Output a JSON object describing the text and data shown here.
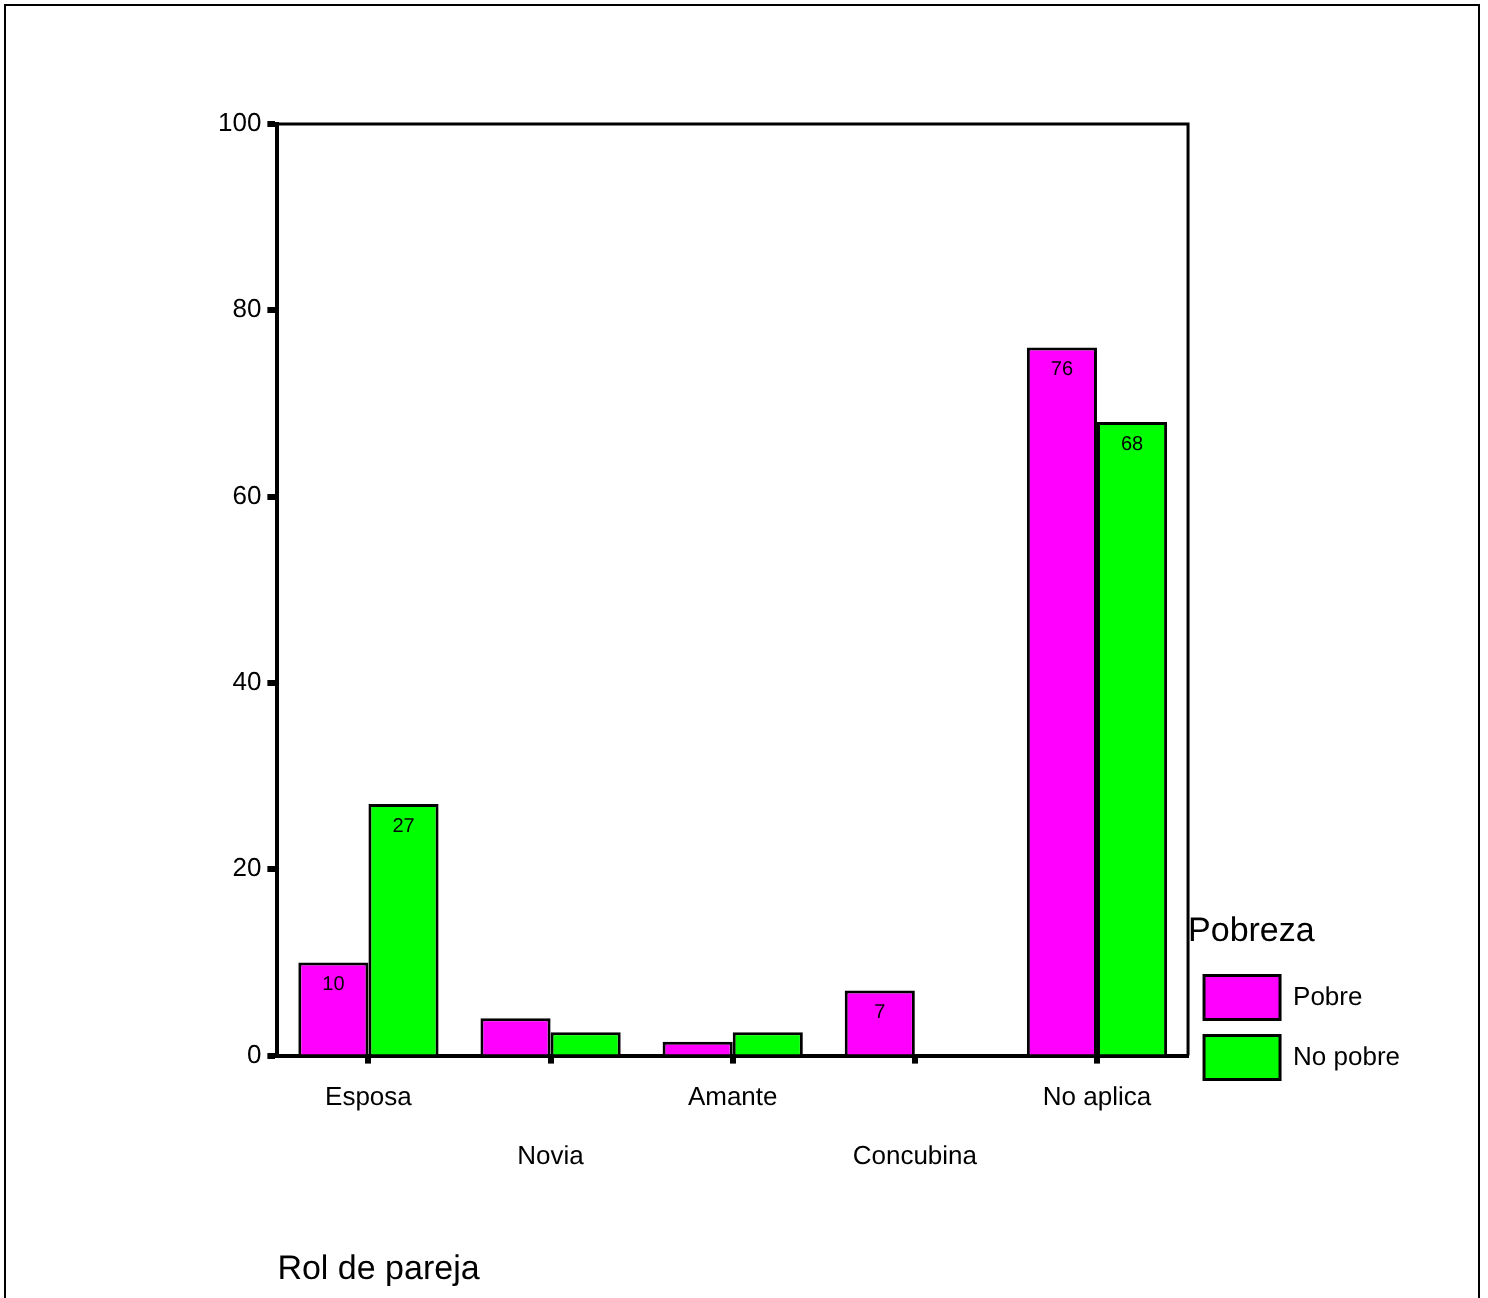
{
  "chart_data": {
    "type": "bar",
    "xlabel": "Rol de pareja",
    "legend_title": "Pobreza",
    "categories": [
      "Esposa",
      "Novia",
      "Amante",
      "Concubina",
      "No aplica"
    ],
    "series": [
      {
        "name": "Pobre",
        "color": "#ff00ff",
        "values": [
          10,
          4,
          1.5,
          7,
          76
        ],
        "value_labels": [
          "10",
          null,
          null,
          "7",
          "76"
        ]
      },
      {
        "name": "No pobre",
        "color": "#00ff00",
        "values": [
          27,
          2.5,
          2.5,
          null,
          68
        ],
        "value_labels": [
          "27",
          null,
          null,
          null,
          "68"
        ]
      }
    ],
    "ylim": [
      0,
      100
    ],
    "yticks": [
      0,
      20,
      40,
      60,
      80,
      100
    ],
    "grid": false,
    "legend": "right"
  }
}
